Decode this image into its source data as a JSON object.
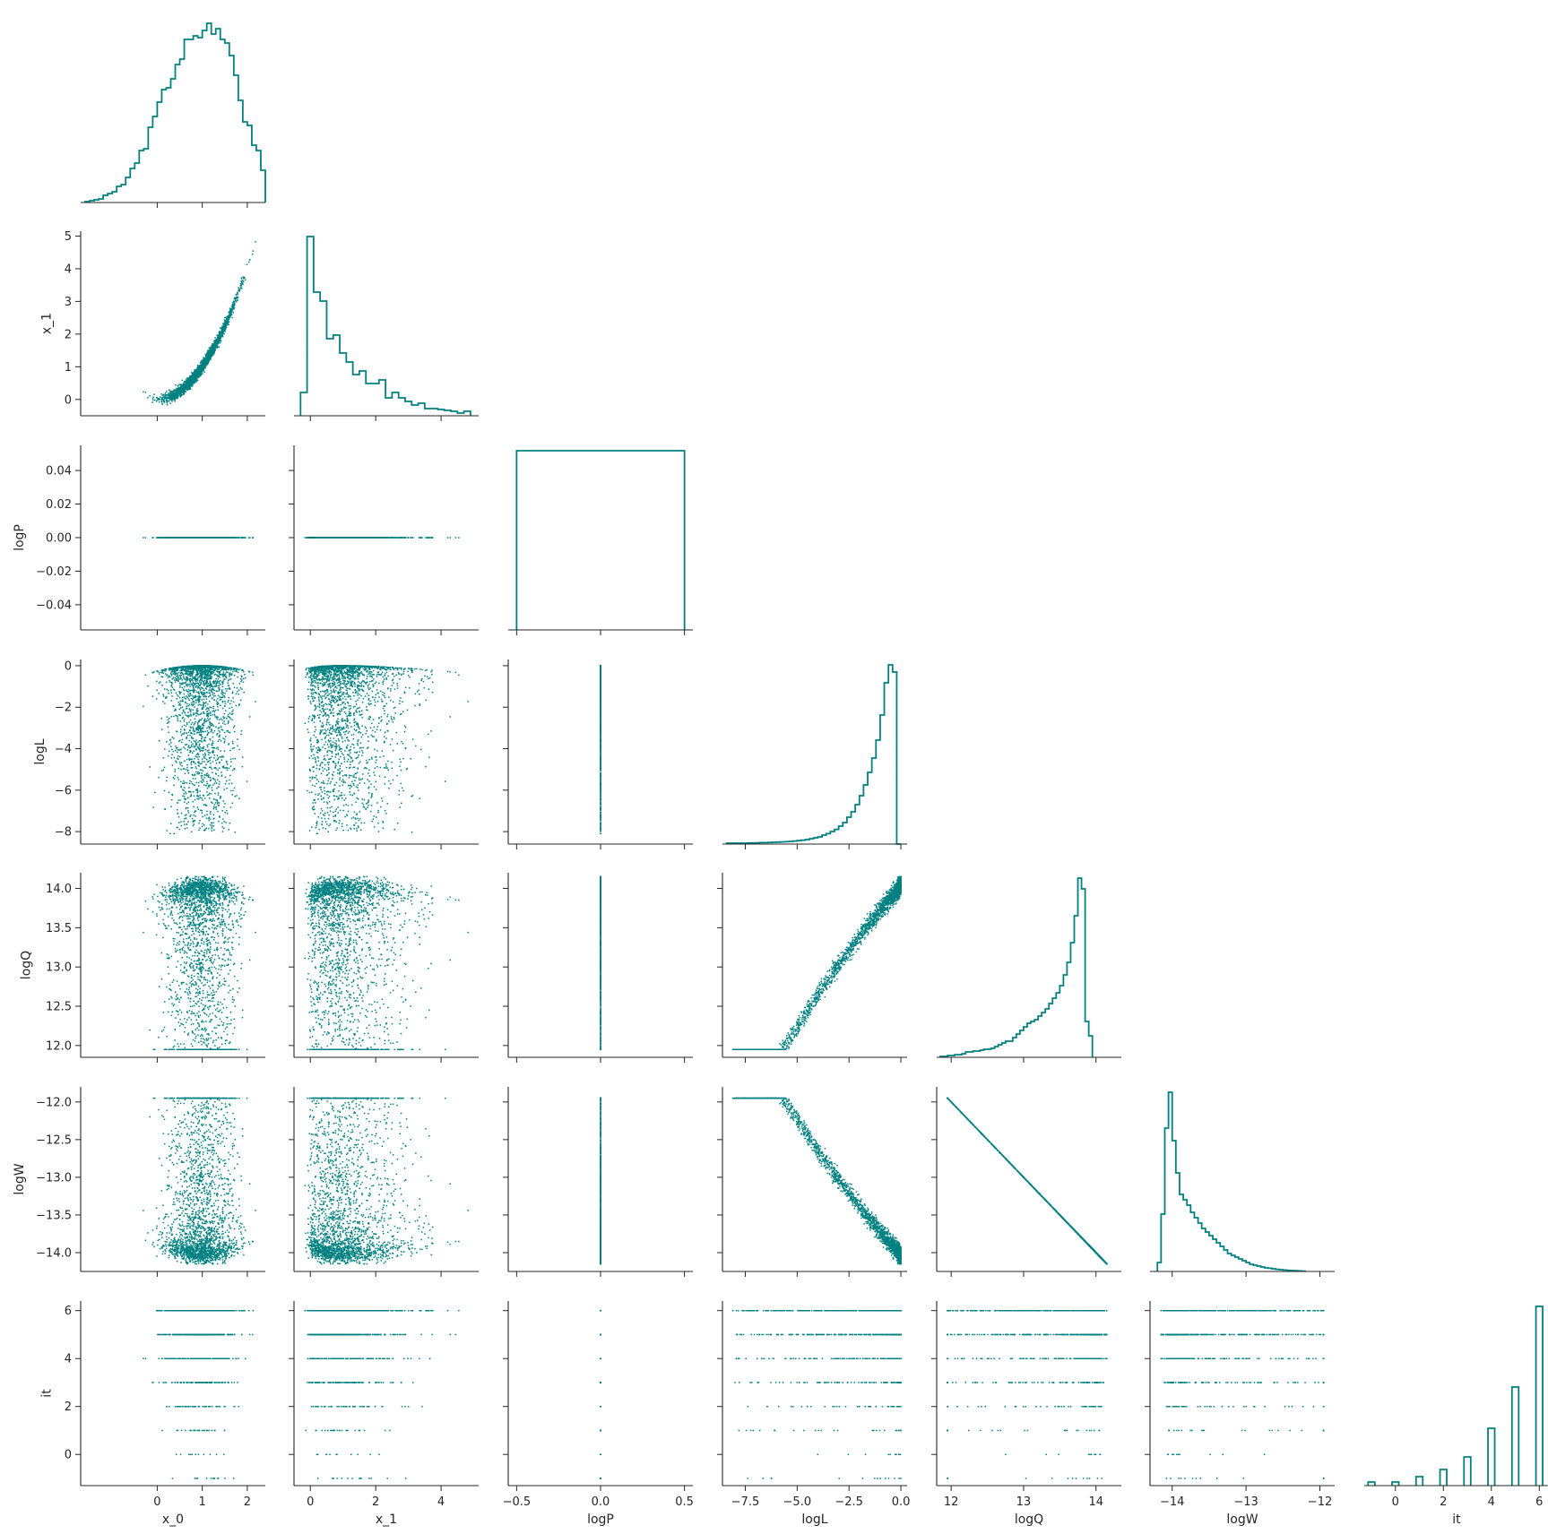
{
  "chart_data": {
    "type": "corner",
    "title": "",
    "color": "#008080",
    "variables": [
      {
        "name": "x_0",
        "label": "x_0",
        "xlim": [
          -1.7,
          2.4
        ],
        "ylim": [
          -0.5,
          5.15
        ],
        "ticks": [
          0,
          1,
          2
        ],
        "tick_labels": [
          "0",
          "1",
          "2"
        ],
        "row_ticks": [],
        "row_tick_labels": []
      },
      {
        "name": "x_1",
        "label": "x_1",
        "xlim": [
          -0.5,
          5.15
        ],
        "ylim": [
          -0.5,
          5.15
        ],
        "ticks": [
          0,
          2,
          4
        ],
        "tick_labels": [
          "0",
          "2",
          "4"
        ],
        "row_ticks": [
          0,
          1,
          2,
          3,
          4,
          5
        ],
        "row_tick_labels": [
          "0",
          "1",
          "2",
          "3",
          "4",
          "5"
        ]
      },
      {
        "name": "logP",
        "label": "logP",
        "xlim": [
          -0.55,
          0.55
        ],
        "ylim": [
          -0.055,
          0.055
        ],
        "ticks": [
          -0.5,
          0.0,
          0.5
        ],
        "tick_labels": [
          "−0.5",
          "0.0",
          "0.5"
        ],
        "row_ticks": [
          -0.04,
          -0.02,
          0.0,
          0.02,
          0.04
        ],
        "row_tick_labels": [
          "−0.04",
          "−0.02",
          "0.00",
          "0.02",
          "0.04"
        ]
      },
      {
        "name": "logL",
        "label": "logL",
        "xlim": [
          -8.6,
          0.3
        ],
        "ylim": [
          -8.6,
          0.3
        ],
        "ticks": [
          -7.5,
          -5.0,
          -2.5,
          0.0
        ],
        "tick_labels": [
          "−7.5",
          "−5.0",
          "−2.5",
          "0.0"
        ],
        "row_ticks": [
          -8,
          -6,
          -4,
          -2,
          0
        ],
        "row_tick_labels": [
          "−8",
          "−6",
          "−4",
          "−2",
          "0"
        ]
      },
      {
        "name": "logQ",
        "label": "logQ",
        "xlim": [
          11.8,
          14.35
        ],
        "ylim": [
          11.85,
          14.2
        ],
        "ticks": [
          12,
          13,
          14
        ],
        "tick_labels": [
          "12",
          "13",
          "14"
        ],
        "row_ticks": [
          12.0,
          12.5,
          13.0,
          13.5,
          14.0
        ],
        "row_tick_labels": [
          "12.0",
          "12.5",
          "13.0",
          "13.5",
          "14.0"
        ]
      },
      {
        "name": "logW",
        "label": "logW",
        "xlim": [
          -14.3,
          -11.8
        ],
        "ylim": [
          -14.25,
          -11.8
        ],
        "ticks": [
          -14,
          -13,
          -12
        ],
        "tick_labels": [
          "−14",
          "−13",
          "−12"
        ],
        "row_ticks": [
          -14.0,
          -13.5,
          -13.0,
          -12.5,
          -12.0
        ],
        "row_tick_labels": [
          "−14.0",
          "−13.5",
          "−13.0",
          "−12.5",
          "−12.0"
        ]
      },
      {
        "name": "it",
        "label": "it",
        "xlim": [
          -1.3,
          6.4
        ],
        "ylim": [
          -1.3,
          6.4
        ],
        "ticks": [
          0,
          2,
          4,
          6
        ],
        "tick_labels": [
          "0",
          "2",
          "4",
          "6"
        ],
        "row_ticks": [
          0,
          2,
          4,
          6
        ],
        "row_tick_labels": [
          "0",
          "2",
          "4",
          "6"
        ]
      }
    ],
    "histograms": [
      {
        "var": "x_0",
        "ymax": 1.0,
        "edges_start": -1.6,
        "bin_width": 0.1,
        "counts": [
          0.005,
          0.01,
          0.015,
          0.02,
          0.04,
          0.05,
          0.06,
          0.09,
          0.1,
          0.14,
          0.19,
          0.22,
          0.29,
          0.3,
          0.42,
          0.48,
          0.56,
          0.63,
          0.64,
          0.69,
          0.77,
          0.8,
          0.91,
          0.91,
          0.93,
          0.92,
          0.96,
          1.0,
          0.94,
          0.97,
          0.91,
          0.89,
          0.82,
          0.71,
          0.57,
          0.45,
          0.43,
          0.32,
          0.29,
          0.18
        ]
      },
      {
        "var": "x_1",
        "ymax": 1.0,
        "edges_start": -0.3,
        "bin_width": 0.2,
        "counts": [
          0.13,
          1.0,
          0.69,
          0.64,
          0.43,
          0.45,
          0.35,
          0.3,
          0.23,
          0.25,
          0.18,
          0.18,
          0.2,
          0.1,
          0.13,
          0.1,
          0.08,
          0.06,
          0.07,
          0.04,
          0.04,
          0.035,
          0.03,
          0.025,
          0.015,
          0.025
        ]
      },
      {
        "var": "logP",
        "ymax": 1.0,
        "edges_start": -0.5,
        "bin_width": 1.0,
        "counts": [
          1.0
        ]
      },
      {
        "var": "logL",
        "ymax": 1.0,
        "edges_start": -8.4,
        "bin_width": 0.2,
        "counts": [
          0.005,
          0.005,
          0.005,
          0.005,
          0.005,
          0.006,
          0.006,
          0.007,
          0.008,
          0.008,
          0.009,
          0.01,
          0.011,
          0.012,
          0.013,
          0.015,
          0.017,
          0.019,
          0.022,
          0.025,
          0.03,
          0.035,
          0.04,
          0.05,
          0.058,
          0.07,
          0.082,
          0.1,
          0.12,
          0.15,
          0.18,
          0.22,
          0.27,
          0.33,
          0.4,
          0.48,
          0.58,
          0.72,
          0.9,
          1.0,
          0.96,
          0.0
        ]
      },
      {
        "var": "logQ",
        "ymax": 1.0,
        "edges_start": 11.85,
        "bin_width": 0.05,
        "counts": [
          0.005,
          0.005,
          0.01,
          0.01,
          0.015,
          0.015,
          0.02,
          0.03,
          0.03,
          0.035,
          0.035,
          0.04,
          0.045,
          0.045,
          0.05,
          0.06,
          0.07,
          0.08,
          0.09,
          0.09,
          0.11,
          0.13,
          0.15,
          0.17,
          0.19,
          0.2,
          0.21,
          0.23,
          0.25,
          0.27,
          0.3,
          0.33,
          0.36,
          0.4,
          0.46,
          0.53,
          0.64,
          0.79,
          1.0,
          0.94,
          0.2,
          0.12
        ]
      },
      {
        "var": "logW",
        "ymax": 1.0,
        "edges_start": -14.2,
        "bin_width": 0.05,
        "counts": [
          0.05,
          0.32,
          0.8,
          1.0,
          0.73,
          0.55,
          0.43,
          0.4,
          0.37,
          0.33,
          0.3,
          0.27,
          0.24,
          0.22,
          0.2,
          0.18,
          0.16,
          0.14,
          0.12,
          0.1,
          0.09,
          0.08,
          0.07,
          0.06,
          0.05,
          0.04,
          0.035,
          0.03,
          0.025,
          0.02,
          0.018,
          0.015,
          0.012,
          0.01,
          0.008,
          0.006,
          0.005,
          0.004,
          0.003,
          0.002
        ]
      },
      {
        "var": "it",
        "ymax": 1.0,
        "bin_width": 0.28,
        "bins": [
          {
            "x": -1,
            "count": 0.02
          },
          {
            "x": 0,
            "count": 0.02
          },
          {
            "x": 1,
            "count": 0.05
          },
          {
            "x": 2,
            "count": 0.09
          },
          {
            "x": 3,
            "count": 0.16
          },
          {
            "x": 4,
            "count": 0.32
          },
          {
            "x": 5,
            "count": 0.55
          },
          {
            "x": 6,
            "count": 1.0
          }
        ]
      }
    ],
    "scatter_pairs": [
      {
        "x": "x_0",
        "y": "x_1",
        "shape": "parabola y = x_0^2 with thin spread, stray points near (-1.4, 2.2)"
      },
      {
        "x": "x_0",
        "y": "logP",
        "shape": "all points on y = 0"
      },
      {
        "x": "x_1",
        "y": "logP",
        "shape": "all points on y = 0"
      },
      {
        "x": "logP",
        "y": "logL",
        "shape": "all points on x = 0"
      },
      {
        "x": "logP",
        "y": "logQ",
        "shape": "all points on x = 0"
      },
      {
        "x": "logP",
        "y": "logW",
        "shape": "all points on x = 0"
      },
      {
        "x": "logP",
        "y": "it",
        "shape": "all points on x = 0, integer rows"
      },
      {
        "x": "logQ",
        "y": "logW",
        "shape": "line logW = -logQ"
      },
      {
        "x": "x_0",
        "y": "logL",
        "shape": "dense cap peaking at x_0 = 1, logL = 0, sparse tail to -8"
      },
      {
        "x": "x_1",
        "y": "logL",
        "shape": "dense band near 0 falling to -1.5 at x_1 = 4.8"
      },
      {
        "x": "logL",
        "y": "logQ",
        "shape": "curved band rising to logQ = 14 at logL = 0"
      },
      {
        "x": "logL",
        "y": "logW",
        "shape": "curved band falling to logW = -14 at logL = 0"
      },
      {
        "x": "x_0",
        "y": "logQ",
        "shape": "S-shaped dense upper envelope near 14"
      },
      {
        "x": "x_1",
        "y": "logQ",
        "shape": "dense upper envelope near 14, crescent near x_1 = 0"
      },
      {
        "x": "x_0",
        "y": "logW",
        "shape": "mirror of logQ panel, dense lower envelope near -14"
      },
      {
        "x": "x_1",
        "y": "logW",
        "shape": "mirror of logQ panel, dense lower envelope near -14"
      },
      {
        "x": "x_0",
        "y": "it",
        "shape": "horizontal rows at integer it, denser at higher it"
      },
      {
        "x": "x_1",
        "y": "it",
        "shape": "horizontal rows at integer it, denser at higher it"
      },
      {
        "x": "logL",
        "y": "it",
        "shape": "horizontal rows at integer it, dense near logL = 0"
      },
      {
        "x": "logQ",
        "y": "it",
        "shape": "horizontal rows at integer it, dense near logQ = 14"
      },
      {
        "x": "logW",
        "y": "it",
        "shape": "horizontal rows at integer it, dense near logW = -14"
      }
    ]
  }
}
